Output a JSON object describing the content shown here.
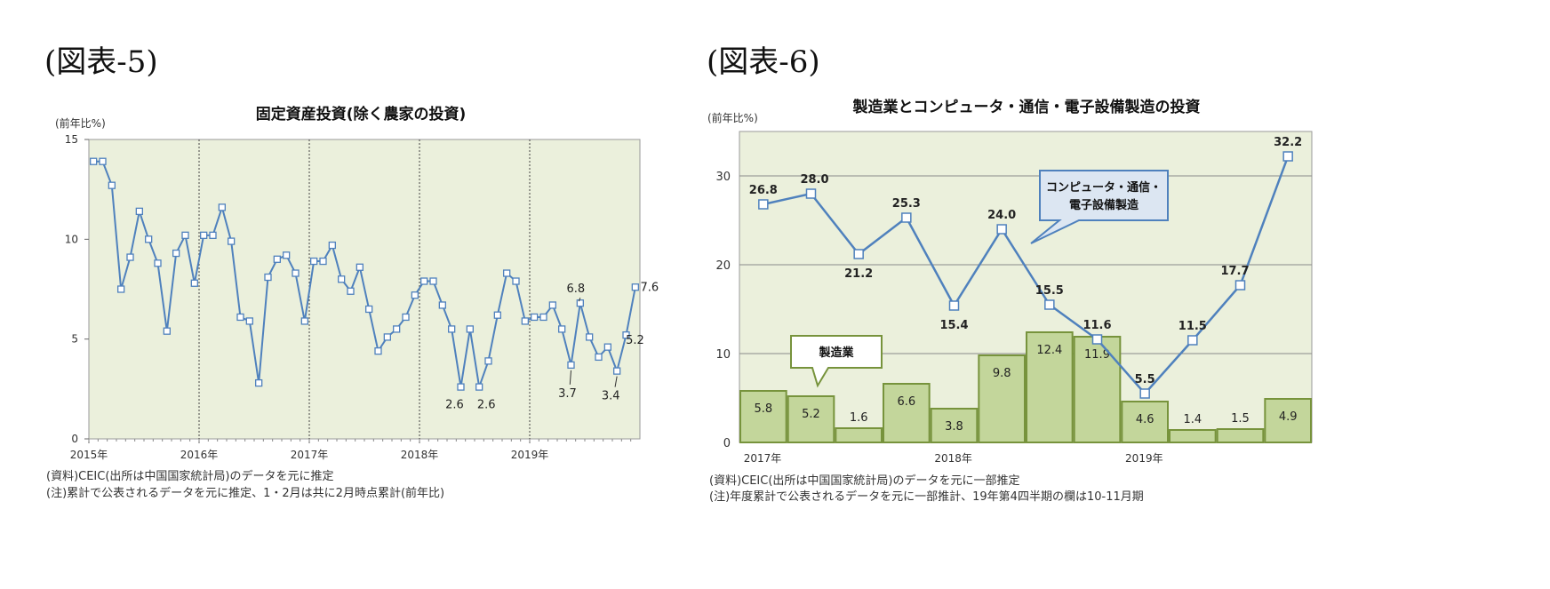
{
  "figures": {
    "fig5_label": "(図表-5)",
    "fig6_label": "(図表-6)"
  },
  "chart_data": [
    {
      "type": "line",
      "title": "固定資産投資(除く農家の投資)",
      "ylabel": "(前年比%)",
      "ylim": [
        0,
        15
      ],
      "yticks": [
        "0",
        "5",
        "10",
        "15"
      ],
      "xtick_labels": [
        "2015年",
        "2016年",
        "2017年",
        "2018年",
        "2019年"
      ],
      "grid": false,
      "series": [
        {
          "values": [
            13.9,
            13.9,
            12.7,
            7.5,
            9.1,
            11.4,
            10.0,
            8.8,
            5.4,
            9.3,
            10.2,
            7.8,
            10.2,
            10.2,
            11.6,
            9.9,
            6.1,
            5.9,
            2.8,
            8.1,
            9.0,
            9.2,
            8.3,
            5.9,
            8.9,
            8.9,
            9.7,
            8.0,
            7.4,
            8.6,
            6.5,
            4.4,
            5.1,
            5.5,
            6.1,
            7.2,
            7.9,
            7.9,
            6.7,
            5.5,
            2.6,
            5.5,
            2.6,
            3.9,
            6.2,
            8.3,
            7.9,
            5.9,
            6.1,
            6.1,
            6.7,
            5.5,
            3.7,
            6.8,
            5.1,
            4.1,
            4.6,
            3.4,
            5.2,
            7.6
          ]
        }
      ],
      "annotations": [
        "6.8",
        "7.6",
        "5.2",
        "2.6",
        "2.6",
        "3.7",
        "3.4"
      ],
      "notes": [
        "(資料)CEIC(出所は中国国家統計局)のデータを元に推定",
        "(注)累計で公表されるデータを元に推定、1・2月は共に2月時点累計(前年比)"
      ],
      "colors": {
        "plot_bg": "#ebf0dc",
        "line": "#4f81bd",
        "marker_fill": "#ffffff"
      }
    },
    {
      "type": "bar",
      "title": "製造業とコンピュータ・通信・電子設備製造の投資",
      "ylabel": "(前年比%)",
      "ylim": [
        0,
        35
      ],
      "yticks": [
        "0",
        "10",
        "20",
        "30"
      ],
      "xtick_labels": [
        "2017年",
        "2018年",
        "2019年"
      ],
      "grid": true,
      "series": [
        {
          "name": "製造業",
          "type": "bar",
          "values": [
            5.8,
            5.2,
            1.6,
            6.6,
            3.8,
            9.8,
            12.4,
            11.9,
            4.6,
            1.4,
            1.5,
            4.9
          ],
          "labels": [
            "5.8",
            "5.2",
            "1.6",
            "6.6",
            "3.8",
            "9.8",
            "12.4",
            "11.9",
            "4.6",
            "1.4",
            "1.5",
            "4.9"
          ]
        },
        {
          "name": "コンピュータ・通信・電子設備製造",
          "type": "line",
          "values": [
            26.8,
            28.0,
            21.2,
            25.3,
            15.4,
            24.0,
            15.5,
            11.6,
            5.5,
            11.5,
            17.7,
            32.2
          ],
          "labels": [
            "26.8",
            "28.0",
            "21.2",
            "25.3",
            "15.4",
            "24.0",
            "15.5",
            "11.6",
            "5.5",
            "11.5",
            "17.7",
            "32.2"
          ]
        }
      ],
      "callouts": {
        "line_callout_1": "コンピュータ・通信・",
        "line_callout_2": "電子設備製造",
        "bar_callout": "製造業"
      },
      "notes": [
        "(資料)CEIC(出所は中国国家統計局)のデータを元に一部推定",
        "(注)年度累計で公表されるデータを元に一部推計、19年第4四半期の欄は10-11月期"
      ],
      "colors": {
        "plot_bg": "#ebf0dc",
        "bar_fill": "#c3d69b",
        "bar_stroke": "#77933c",
        "line": "#4f81bd",
        "callout_bg": "#dce6f2"
      }
    }
  ]
}
